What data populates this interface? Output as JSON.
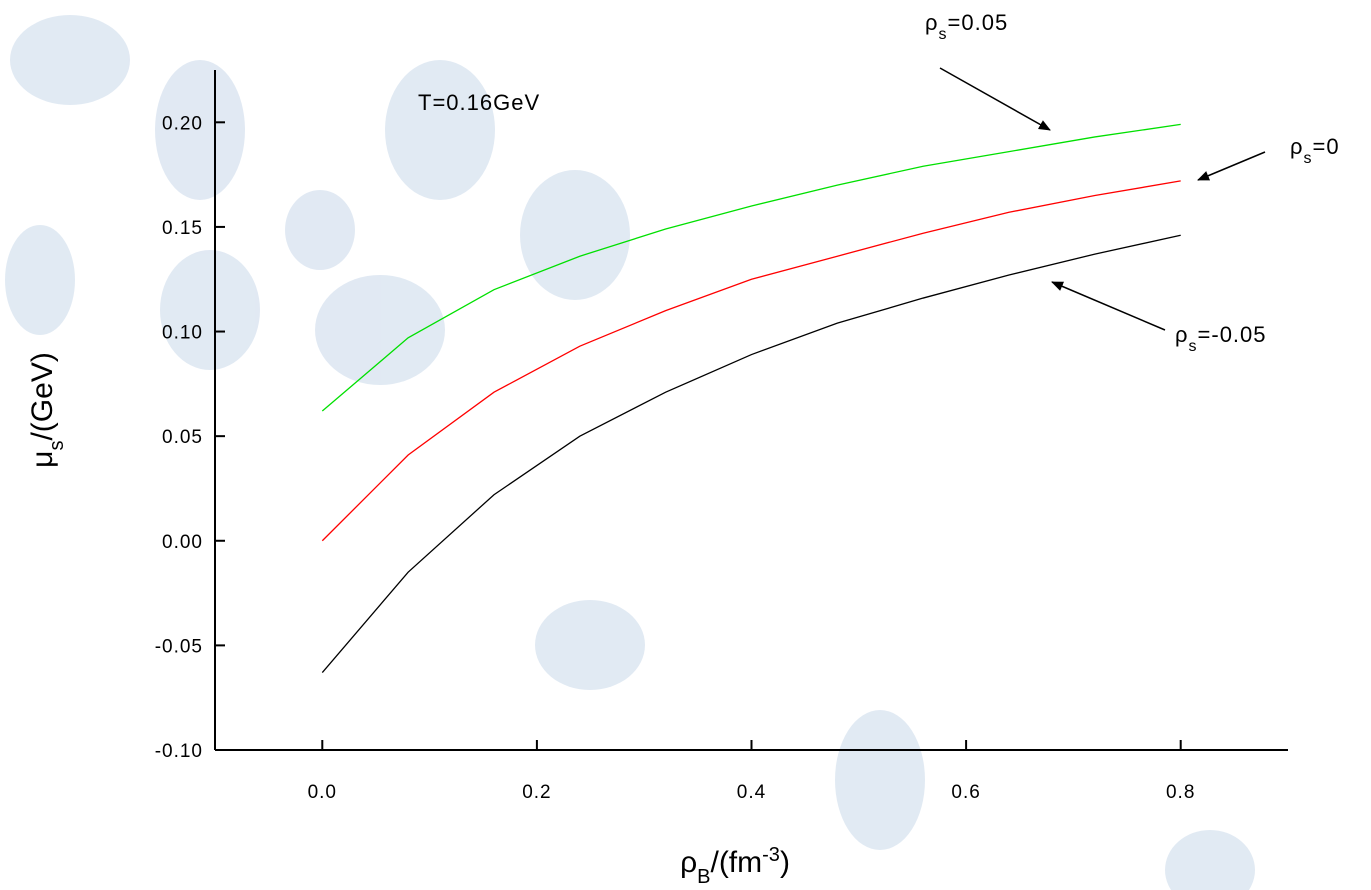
{
  "chart_data": {
    "type": "line",
    "annotation": "T=0.16GeV",
    "x_label": {
      "base": "ρ",
      "sub": "B",
      "rest": "/(fm",
      "sup": "-3",
      "end": ")"
    },
    "y_label": {
      "base": "μ",
      "sub": "s",
      "rest": "/(GeV)"
    },
    "x": [
      0,
      0.08,
      0.16,
      0.24,
      0.32,
      0.4,
      0.48,
      0.56,
      0.64,
      0.72,
      0.8
    ],
    "series": [
      {
        "label": {
          "base": "ρ",
          "sub": "s",
          "rest": "=0.05"
        },
        "color": "#00e000",
        "values": [
          0.062,
          0.097,
          0.12,
          0.136,
          0.149,
          0.16,
          0.17,
          0.179,
          0.186,
          0.193,
          0.199
        ]
      },
      {
        "label": {
          "base": "ρ",
          "sub": "s",
          "rest": "=0"
        },
        "color": "#ff0000",
        "values": [
          0.0,
          0.041,
          0.071,
          0.093,
          0.11,
          0.125,
          0.136,
          0.147,
          0.157,
          0.165,
          0.172
        ]
      },
      {
        "label": {
          "base": "ρ",
          "sub": "s",
          "rest": "=-0.05"
        },
        "color": "#000000",
        "values": [
          -0.063,
          -0.015,
          0.022,
          0.05,
          0.071,
          0.089,
          0.104,
          0.116,
          0.127,
          0.137,
          0.146
        ]
      }
    ],
    "xlim": [
      -0.1,
      0.9
    ],
    "ylim": [
      -0.1,
      0.225
    ],
    "xticks": [
      {
        "value": 0,
        "label": "0.0"
      },
      0.2,
      0.4,
      0.6,
      0.8
    ],
    "yticks": [
      {
        "value": -0.1,
        "label": "-0.10"
      },
      -0.05,
      {
        "value": 0,
        "label": "0.00"
      },
      0.05,
      {
        "value": 0.1,
        "label": "0.10"
      },
      0.15,
      {
        "value": 0.2,
        "label": "0.20"
      }
    ]
  }
}
